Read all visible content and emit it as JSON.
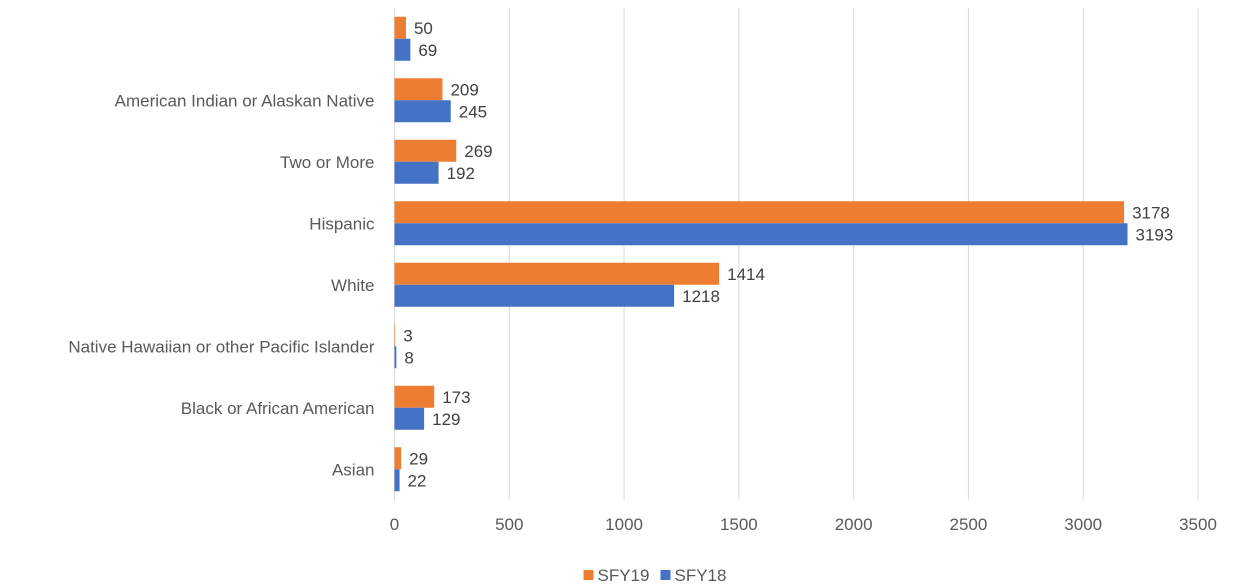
{
  "chart_data": {
    "type": "bar",
    "orientation": "horizontal",
    "title": "",
    "xlabel": "",
    "ylabel": "",
    "categories": [
      "",
      "American Indian or Alaskan Native",
      "Two or More",
      "Hispanic",
      "White",
      "Native Hawaiian or other Pacific Islander",
      "Black or African American",
      "Asian"
    ],
    "series": [
      {
        "name": "SFY19",
        "color": "#ED7D31",
        "values": [
          50,
          209,
          269,
          3178,
          1414,
          3,
          173,
          29
        ]
      },
      {
        "name": "SFY18",
        "color": "#4472C4",
        "values": [
          69,
          245,
          192,
          3193,
          1218,
          8,
          129,
          22
        ]
      }
    ],
    "xlim": [
      0,
      3500
    ],
    "xticks": [
      0,
      500,
      1000,
      1500,
      2000,
      2500,
      3000,
      3500
    ],
    "grid": "vertical",
    "legend": "bottom-center",
    "data_labels": true
  }
}
